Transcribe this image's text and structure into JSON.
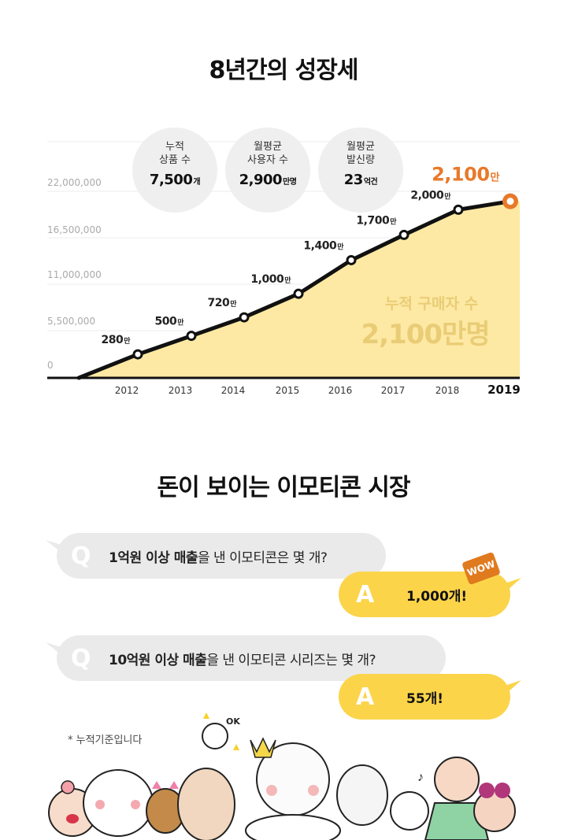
{
  "section1_title": "8년간의 성장세",
  "stats": [
    {
      "label": "누적\n상품 수",
      "value": "7,500",
      "unit": "개"
    },
    {
      "label": "월평균\n사용자 수",
      "value": "2,900",
      "unit": "만명"
    },
    {
      "label": "월평균\n발신량",
      "value": "23",
      "unit": "억건"
    }
  ],
  "chart_data": {
    "type": "area",
    "title": "8년간의 성장세",
    "x": [
      "2012",
      "2013",
      "2014",
      "2015",
      "2016",
      "2017",
      "2018",
      "2019"
    ],
    "values": [
      2800000,
      5000000,
      7200000,
      10000000,
      14000000,
      17000000,
      20000000,
      21000000
    ],
    "point_labels": [
      "280",
      "500",
      "720",
      "1,000",
      "1,400",
      "1,700",
      "2,000",
      "2,100"
    ],
    "point_label_unit": "만",
    "y_ticks": [
      0,
      5500000,
      11000000,
      16500000,
      22000000
    ],
    "y_tick_labels": [
      "0",
      "5,500,000",
      "11,000,000",
      "16,500,000",
      "22,000,000"
    ],
    "ylim": [
      0,
      22000000
    ],
    "series_name": "누적 구매자 수",
    "series_total": "2,100만명",
    "highlight_year": "2019",
    "accent_color": "#e8792a",
    "fill_color": "#fde9a3",
    "line_color": "#111111"
  },
  "section2_title": "돈이 보이는 이모티콘 시장",
  "qa": [
    {
      "q_letter": "Q",
      "q_bold": "1억원 이상 매출",
      "q_rest": "을 낸 이모티콘은 몇 개?",
      "a_letter": "A",
      "answer": "1,000개!"
    },
    {
      "q_letter": "Q",
      "q_bold": "10억원 이상 매출",
      "q_rest": "을 낸 이모티콘 시리즈는 몇 개?",
      "a_letter": "A",
      "answer": "55개!"
    }
  ],
  "wow_badge": "WOW",
  "footnote": "* 누적기준입니다",
  "characters": {
    "ok_sign": "OK",
    "music_note": "♪"
  }
}
